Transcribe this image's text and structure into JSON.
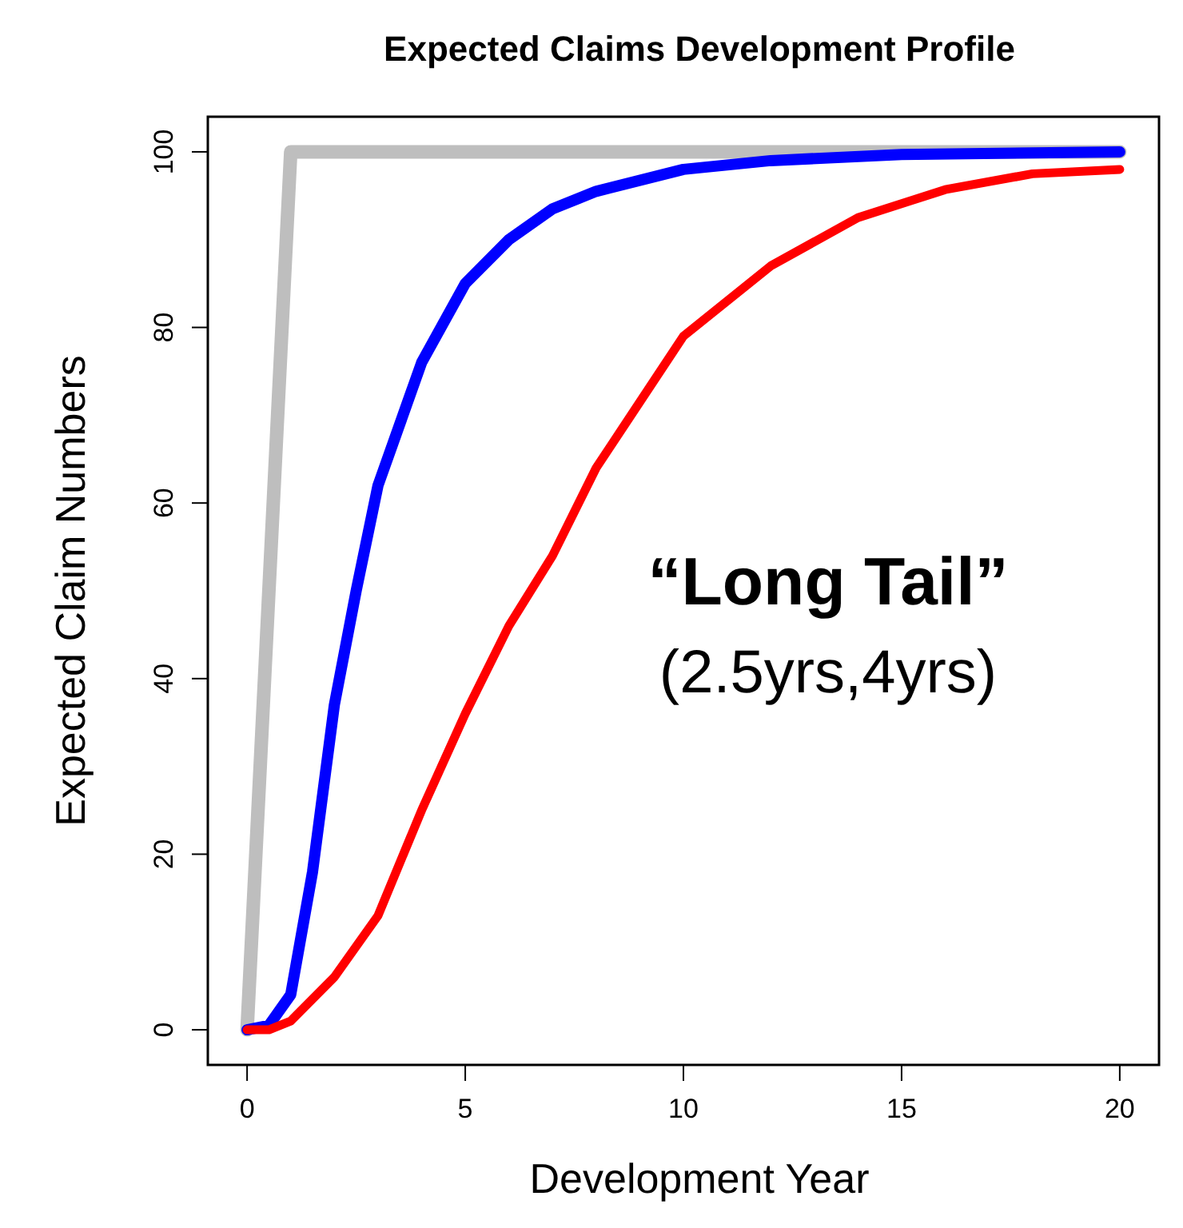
{
  "chart_data": {
    "type": "line",
    "title": "Expected Claims Development Profile",
    "xlabel": "Development Year",
    "ylabel": "Expected Claim Numbers",
    "xlim": [
      -0.9,
      20.9
    ],
    "ylim": [
      -4,
      104
    ],
    "xticks": [
      0,
      5,
      10,
      15,
      20
    ],
    "yticks": [
      0,
      20,
      40,
      60,
      80,
      100
    ],
    "annotations": [
      "“Long Tail”",
      "(2.5yrs,4yrs)"
    ],
    "series": [
      {
        "color": "#bebebe",
        "x": [
          0,
          1,
          20
        ],
        "values": [
          0,
          100,
          100
        ]
      },
      {
        "color": "#0000ff",
        "x": [
          0,
          0.5,
          1,
          1.5,
          2,
          2.5,
          3,
          4,
          5,
          6,
          7,
          8,
          10,
          12,
          15,
          20
        ],
        "values": [
          0,
          0.5,
          4,
          18,
          37,
          50,
          62,
          76,
          85,
          90,
          93.5,
          95.5,
          98,
          99,
          99.7,
          100
        ]
      },
      {
        "color": "#ff0000",
        "x": [
          0,
          0.5,
          1,
          2,
          3,
          4,
          5,
          6,
          7,
          8,
          10,
          12,
          14,
          16,
          18,
          20
        ],
        "values": [
          0,
          0,
          1,
          6,
          13,
          25,
          36,
          46,
          54,
          64,
          79,
          87,
          92.5,
          95.7,
          97.5,
          98
        ]
      }
    ]
  }
}
